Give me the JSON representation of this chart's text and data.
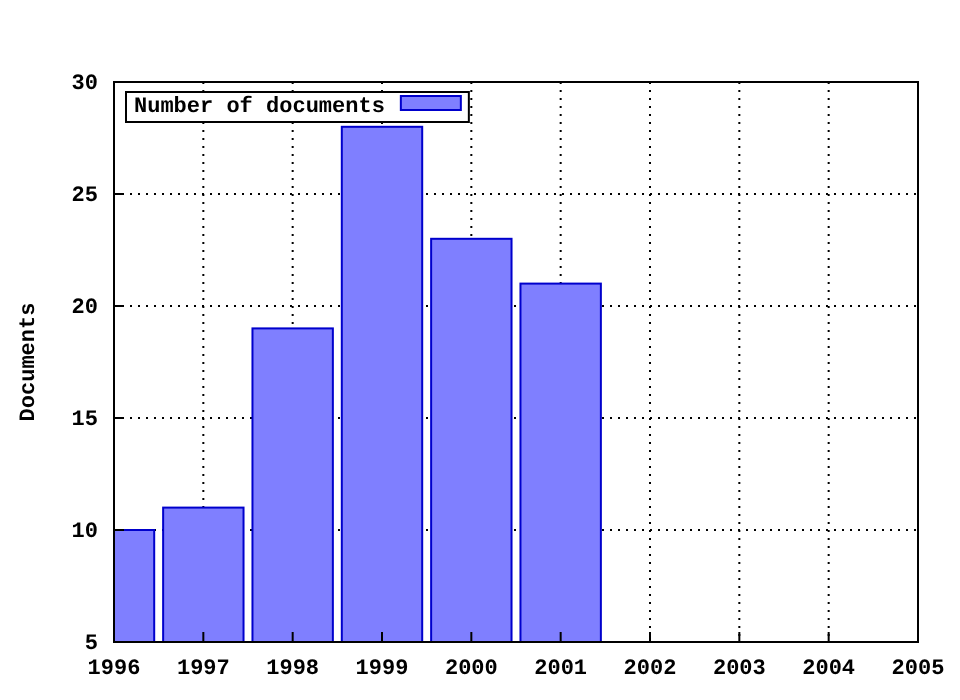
{
  "chart_data": {
    "type": "bar",
    "ylabel": "Documents",
    "x": [
      1996,
      1997,
      1998,
      1999,
      2000,
      2001
    ],
    "series": [
      {
        "name": "Number of documents",
        "color": "#7f7fff",
        "values": [
          10,
          11,
          19,
          28,
          23,
          21
        ]
      }
    ],
    "xlim": [
      1996,
      2005
    ],
    "xticks": [
      1996,
      1997,
      1998,
      1999,
      2000,
      2001,
      2002,
      2003,
      2004,
      2005
    ],
    "ylim": [
      5,
      30
    ],
    "yticks": [
      5,
      10,
      15,
      20,
      25,
      30
    ],
    "grid": true,
    "legend": "top left"
  }
}
